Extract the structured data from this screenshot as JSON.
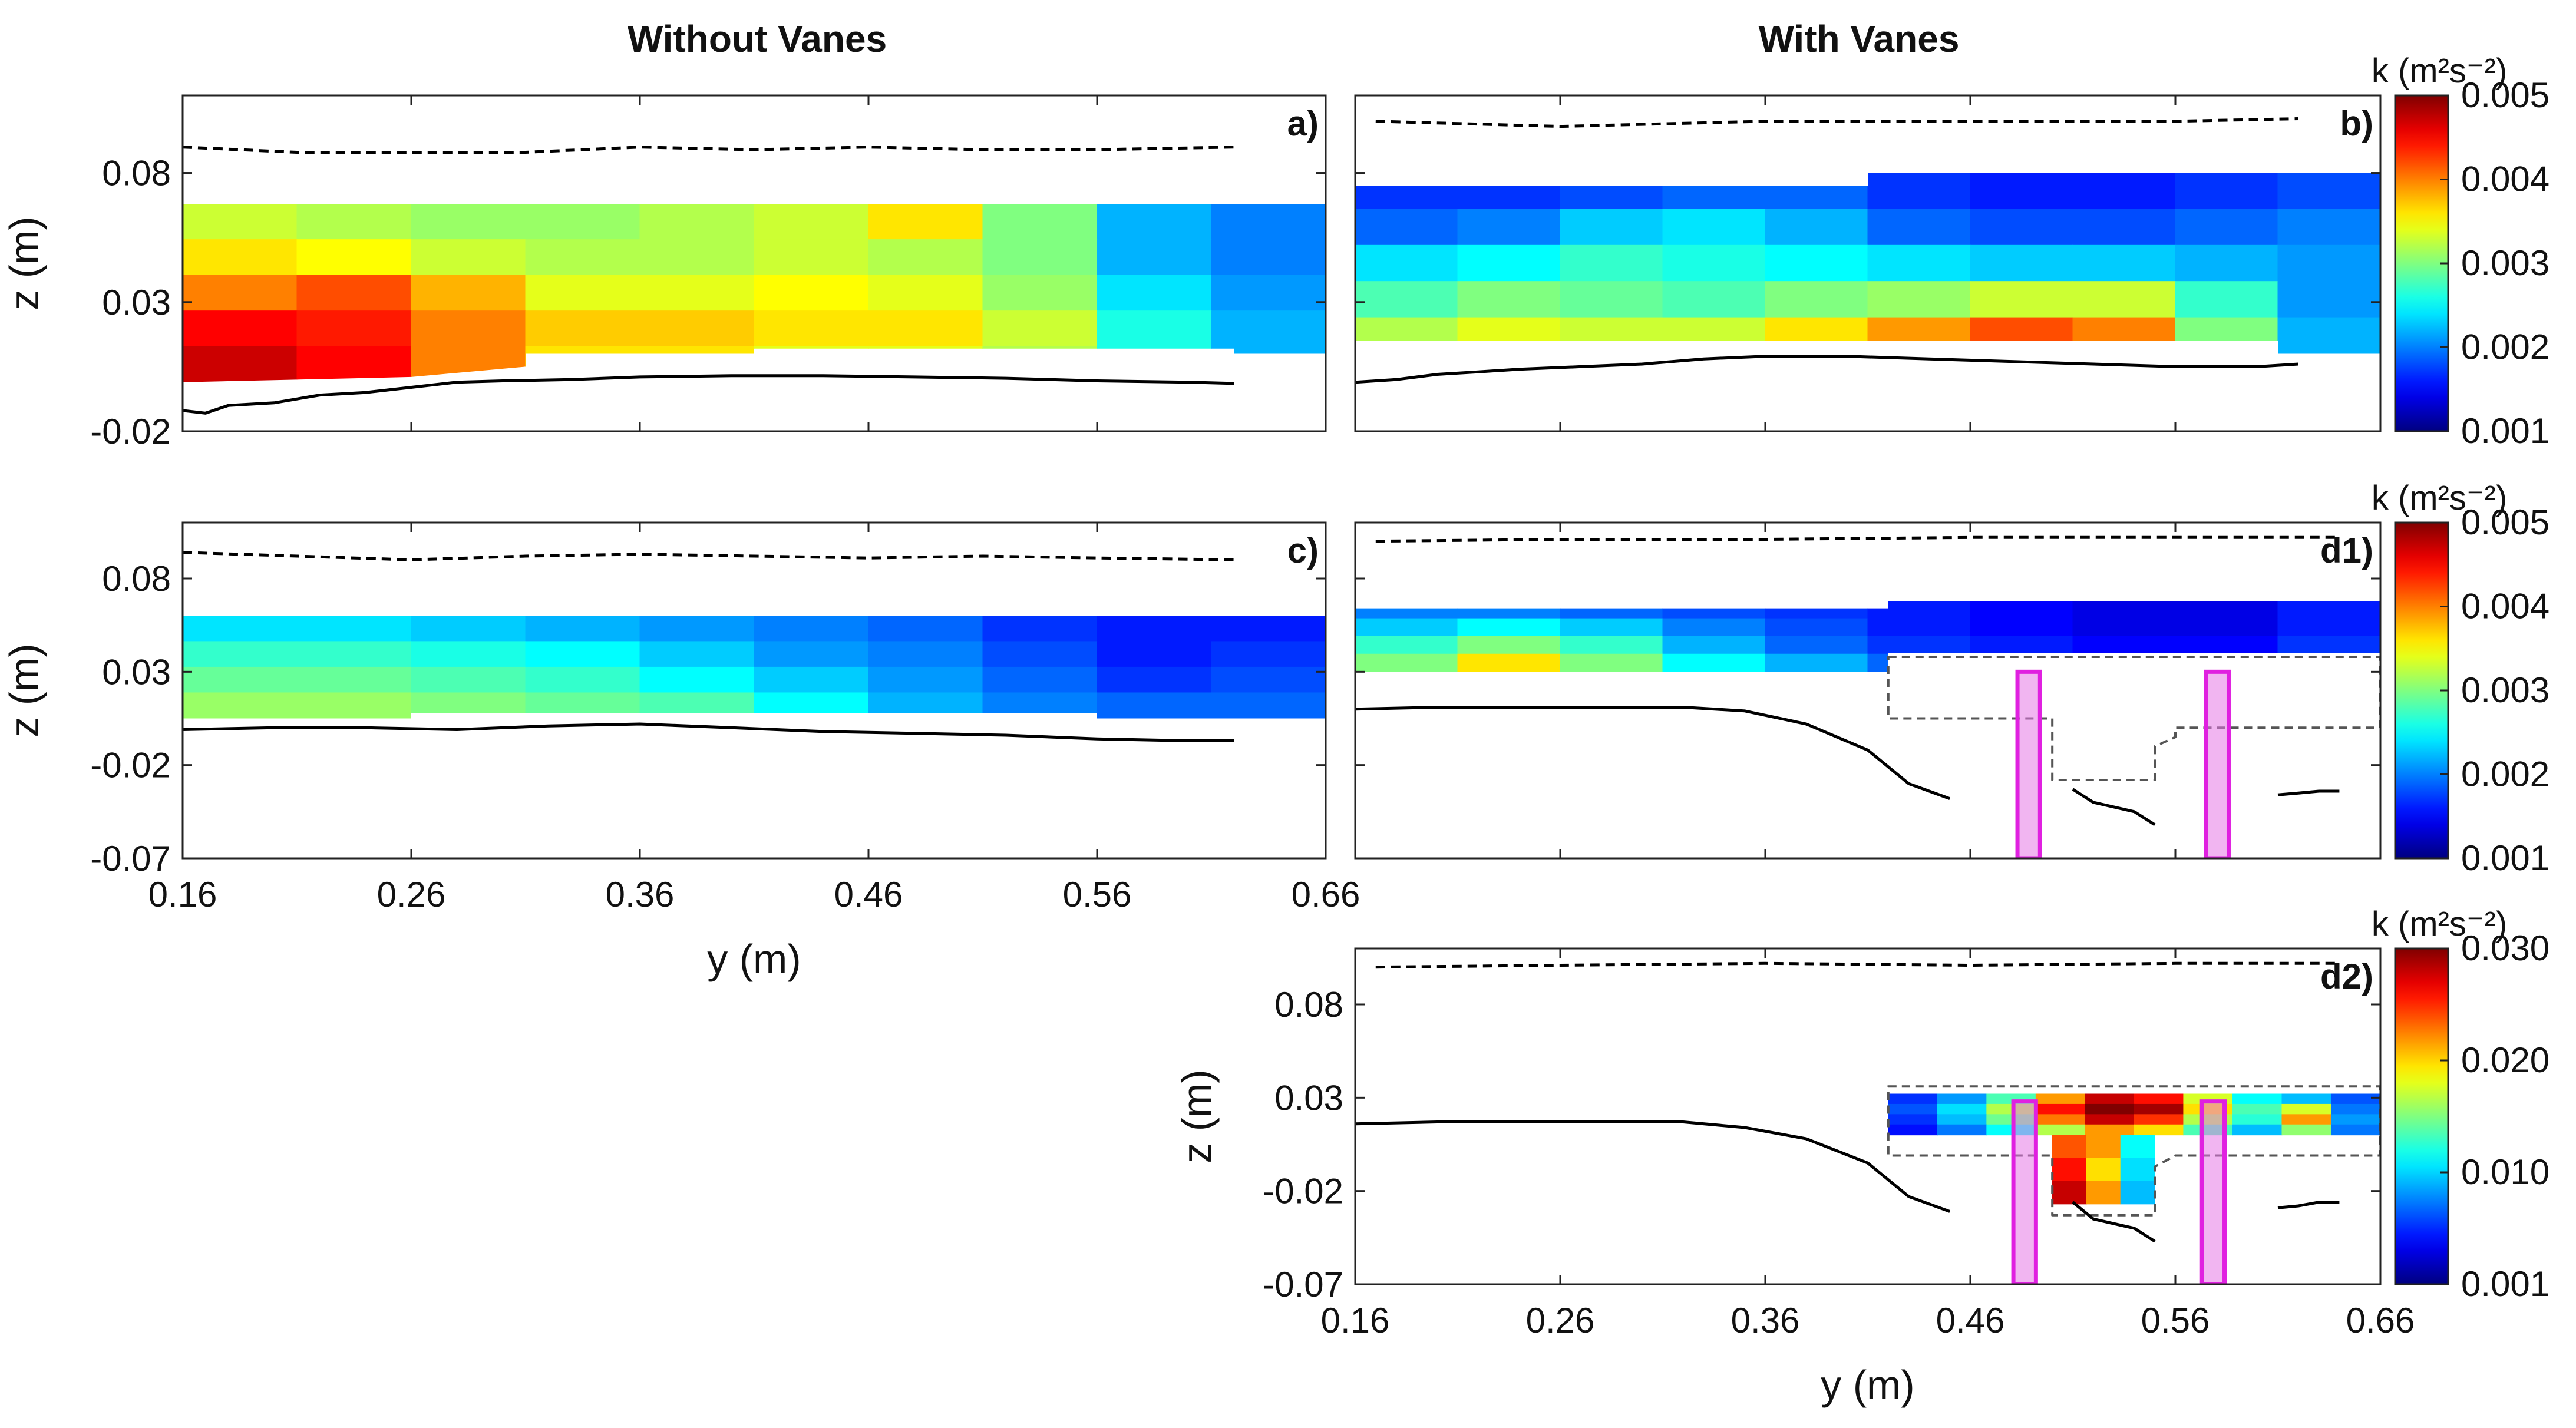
{
  "figure": {
    "col_titles": [
      "Without Vanes",
      "With Vanes"
    ]
  },
  "chart_data": [
    {
      "type": "heatmap",
      "panel": "a)",
      "xlabel": "",
      "ylabel": "z (m)",
      "xlim": [
        0.16,
        0.66
      ],
      "ylim": [
        -0.02,
        0.11
      ],
      "yticks": [
        "0.08",
        "0.03",
        "-0.02"
      ],
      "ytick_values": [
        0.08,
        0.03,
        -0.02
      ],
      "xticks": [],
      "xtick_values": [
        0.16,
        0.26,
        0.36,
        0.46,
        0.56,
        0.66
      ],
      "colorbar_label": "",
      "clim": [
        0.001,
        0.005
      ],
      "field_rows": [
        [
          0.0033,
          0.0032,
          0.0031,
          0.0031,
          0.0032,
          0.0033,
          0.0036,
          0.003,
          0.0022,
          0.002
        ],
        [
          0.0036,
          0.0035,
          0.0033,
          0.0032,
          0.0032,
          0.0033,
          0.0032,
          0.003,
          0.0022,
          0.002
        ],
        [
          0.004,
          0.0042,
          0.0038,
          0.0034,
          0.0034,
          0.0035,
          0.0034,
          0.0031,
          0.0024,
          0.0021
        ],
        [
          0.0045,
          0.0044,
          0.004,
          0.0037,
          0.0037,
          0.0036,
          0.0036,
          0.0033,
          0.0026,
          0.0022
        ],
        [
          0.0047,
          0.0045,
          0.004,
          0.0036,
          0.0036,
          0.0034,
          0.0034,
          0.0032,
          0.0026,
          0.0022
        ]
      ],
      "field_y_top": 0.068,
      "field_y_bottom": 0.0,
      "field_bottom_line": {
        "y": [
          0.16,
          0.26,
          0.31,
          0.31,
          0.41,
          0.41,
          0.62,
          0.62,
          0.66
        ],
        "z": [
          -0.001,
          0.001,
          0.005,
          0.01,
          0.01,
          0.012,
          0.012,
          0.01,
          0.01
        ]
      },
      "water_surface": {
        "y": [
          0.16,
          0.21,
          0.31,
          0.36,
          0.41,
          0.46,
          0.51,
          0.56,
          0.62
        ],
        "z": [
          0.09,
          0.088,
          0.088,
          0.09,
          0.089,
          0.09,
          0.089,
          0.089,
          0.09
        ]
      },
      "bed": {
        "y": [
          0.16,
          0.17,
          0.18,
          0.2,
          0.22,
          0.24,
          0.26,
          0.28,
          0.3,
          0.33,
          0.36,
          0.4,
          0.44,
          0.48,
          0.52,
          0.56,
          0.6,
          0.62
        ],
        "z": [
          -0.012,
          -0.013,
          -0.01,
          -0.009,
          -0.006,
          -0.005,
          -0.003,
          -0.001,
          -0.0005,
          0.0,
          0.001,
          0.0015,
          0.0015,
          0.001,
          0.0005,
          -0.0005,
          -0.001,
          -0.0015
        ]
      }
    },
    {
      "type": "heatmap",
      "panel": "b)",
      "xlabel": "",
      "ylabel": "",
      "xlim": [
        0.16,
        0.66
      ],
      "ylim": [
        -0.02,
        0.11
      ],
      "yticks": [],
      "ytick_values": [
        0.08,
        0.03,
        -0.02
      ],
      "xticks": [],
      "xtick_values": [
        0.16,
        0.26,
        0.36,
        0.46,
        0.56,
        0.66
      ],
      "colorbar_label": "k (m²s⁻²)",
      "clim": [
        0.001,
        0.005
      ],
      "cbar_ticks": [
        "0.005",
        "0.004",
        "0.003",
        "0.002",
        "0.001"
      ],
      "field_rows": [
        [
          0.0017,
          0.0017,
          0.0018,
          0.0019,
          0.0019,
          0.0017,
          0.0016,
          0.0016,
          0.0017,
          0.0018
        ],
        [
          0.0019,
          0.002,
          0.0023,
          0.0024,
          0.0022,
          0.0019,
          0.0018,
          0.0018,
          0.0019,
          0.002
        ],
        [
          0.0024,
          0.0025,
          0.0027,
          0.0026,
          0.0025,
          0.0024,
          0.0023,
          0.0023,
          0.0022,
          0.0021
        ],
        [
          0.0028,
          0.003,
          0.0029,
          0.0028,
          0.003,
          0.0031,
          0.0033,
          0.0033,
          0.0027,
          0.0021
        ],
        [
          0.0032,
          0.0034,
          0.0033,
          0.0033,
          0.0036,
          0.0039,
          0.0042,
          0.004,
          0.003,
          0.0022
        ]
      ],
      "field_y_top": 0.08,
      "field_y_bottom": 0.015,
      "field_top_line": {
        "y": [
          0.16,
          0.41,
          0.41,
          0.66
        ],
        "z": [
          0.075,
          0.075,
          0.08,
          0.08
        ]
      },
      "field_bottom_line": {
        "y": [
          0.16,
          0.61,
          0.61,
          0.66
        ],
        "z": [
          0.015,
          0.015,
          0.01,
          0.01
        ]
      },
      "water_surface": {
        "y": [
          0.17,
          0.26,
          0.36,
          0.46,
          0.56,
          0.62
        ],
        "z": [
          0.1,
          0.098,
          0.1,
          0.1,
          0.1,
          0.101
        ]
      },
      "bed": {
        "y": [
          0.16,
          0.18,
          0.2,
          0.22,
          0.24,
          0.27,
          0.3,
          0.33,
          0.36,
          0.4,
          0.44,
          0.48,
          0.52,
          0.56,
          0.6,
          0.62
        ],
        "z": [
          -0.001,
          0.0,
          0.002,
          0.003,
          0.004,
          0.005,
          0.006,
          0.008,
          0.009,
          0.009,
          0.008,
          0.007,
          0.006,
          0.005,
          0.005,
          0.006
        ]
      }
    },
    {
      "type": "heatmap",
      "panel": "c)",
      "xlabel": "y (m)",
      "ylabel": "z (m)",
      "xlim": [
        0.16,
        0.66
      ],
      "ylim": [
        -0.07,
        0.11
      ],
      "yticks": [
        "0.08",
        "0.03",
        "-0.02",
        "-0.07"
      ],
      "ytick_values": [
        0.08,
        0.03,
        -0.02,
        -0.07
      ],
      "xticks": [
        "0.16",
        "0.26",
        "0.36",
        "0.46",
        "0.56",
        "0.66"
      ],
      "xtick_values": [
        0.16,
        0.26,
        0.36,
        0.46,
        0.56,
        0.66
      ],
      "colorbar_label": "",
      "clim": [
        0.001,
        0.005
      ],
      "field_rows": [
        [
          0.0024,
          0.0024,
          0.0023,
          0.0022,
          0.0021,
          0.002,
          0.0019,
          0.0017,
          0.0016,
          0.0016
        ],
        [
          0.0027,
          0.0027,
          0.0026,
          0.0025,
          0.0023,
          0.0021,
          0.002,
          0.0018,
          0.0016,
          0.0017
        ],
        [
          0.0029,
          0.0029,
          0.0028,
          0.0027,
          0.0025,
          0.0023,
          0.0021,
          0.0019,
          0.0017,
          0.0018
        ],
        [
          0.0031,
          0.0031,
          0.003,
          0.0029,
          0.0028,
          0.0025,
          0.0022,
          0.002,
          0.0019,
          0.0019
        ]
      ],
      "field_y_top": 0.06,
      "field_y_bottom": 0.008,
      "field_bottom_line": {
        "y": [
          0.16,
          0.26,
          0.26,
          0.56,
          0.56,
          0.66
        ],
        "z": [
          0.005,
          0.005,
          0.008,
          0.008,
          0.005,
          0.005
        ]
      },
      "water_surface": {
        "y": [
          0.16,
          0.21,
          0.26,
          0.31,
          0.36,
          0.41,
          0.46,
          0.51,
          0.56,
          0.62
        ],
        "z": [
          0.094,
          0.092,
          0.09,
          0.092,
          0.093,
          0.092,
          0.091,
          0.092,
          0.091,
          0.09
        ]
      },
      "bed": {
        "y": [
          0.16,
          0.2,
          0.24,
          0.28,
          0.32,
          0.36,
          0.4,
          0.44,
          0.48,
          0.52,
          0.56,
          0.6,
          0.62
        ],
        "z": [
          -0.001,
          0.0,
          0.0,
          -0.001,
          0.001,
          0.002,
          0.0,
          -0.002,
          -0.003,
          -0.004,
          -0.006,
          -0.007,
          -0.007
        ]
      }
    },
    {
      "type": "heatmap",
      "panel": "d1)",
      "xlabel": "",
      "ylabel": "",
      "xlim": [
        0.16,
        0.66
      ],
      "ylim": [
        -0.07,
        0.11
      ],
      "yticks": [],
      "ytick_values": [
        0.08,
        0.03,
        -0.02,
        -0.07
      ],
      "xticks": [],
      "xtick_values": [
        0.16,
        0.26,
        0.36,
        0.46,
        0.56,
        0.66
      ],
      "colorbar_label": "k (m²s⁻²)",
      "clim": [
        0.001,
        0.005
      ],
      "cbar_ticks": [
        "0.005",
        "0.004",
        "0.003",
        "0.002",
        "0.001"
      ],
      "field_rows": [
        [
          0.002,
          0.002,
          0.0019,
          0.0018,
          0.0017,
          0.0016,
          0.0015,
          0.0014,
          0.0014,
          0.0016
        ],
        [
          0.0023,
          0.0025,
          0.0023,
          0.002,
          0.0018,
          0.0016,
          0.0015,
          0.0014,
          0.0014,
          0.0016
        ],
        [
          0.0027,
          0.003,
          0.0027,
          0.0022,
          0.0019,
          0.0017,
          0.0016,
          0.0015,
          0.0015,
          0.0017
        ],
        [
          0.003,
          0.0036,
          0.003,
          0.0025,
          0.0022,
          0.0019,
          0.0017,
          0.0016,
          0.0016,
          0.0018
        ]
      ],
      "field_y_top": 0.068,
      "field_y_bottom": 0.03,
      "field_top_line": {
        "y": [
          0.16,
          0.42,
          0.42,
          0.66
        ],
        "z": [
          0.064,
          0.064,
          0.068,
          0.068
        ]
      },
      "field_bottom_line": {
        "y": [
          0.16,
          0.42,
          0.42,
          0.66
        ],
        "z": [
          0.03,
          0.03,
          0.04,
          0.04
        ]
      },
      "water_surface": {
        "y": [
          0.17,
          0.26,
          0.36,
          0.46,
          0.56,
          0.64
        ],
        "z": [
          0.1,
          0.101,
          0.101,
          0.102,
          0.102,
          0.102
        ]
      },
      "bed": {
        "y": [
          0.16,
          0.2,
          0.24,
          0.28,
          0.32,
          0.35,
          0.38,
          0.41,
          0.43,
          0.45
        ],
        "z": [
          0.01,
          0.011,
          0.011,
          0.011,
          0.011,
          0.009,
          0.002,
          -0.012,
          -0.03,
          -0.038
        ]
      },
      "bed_segments": [
        {
          "y": [
            0.51,
            0.52,
            0.54,
            0.55
          ],
          "z": [
            -0.033,
            -0.04,
            -0.045,
            -0.052
          ]
        },
        {
          "y": [
            0.61,
            0.62,
            0.63,
            0.64
          ],
          "z": [
            -0.036,
            -0.035,
            -0.034,
            -0.034
          ]
        }
      ],
      "vanes": [
        {
          "y0": 0.483,
          "y1": 0.494
        },
        {
          "y0": 0.575,
          "y1": 0.586
        }
      ],
      "vane_top_z": 0.03,
      "dashed_region": {
        "y": [
          0.42,
          0.66,
          0.66,
          0.58,
          0.56,
          0.56,
          0.55,
          0.55,
          0.5,
          0.5,
          0.42,
          0.42
        ],
        "z": [
          0.038,
          0.038,
          0.0,
          0.0,
          0.0,
          -0.005,
          -0.01,
          -0.028,
          -0.028,
          0.005,
          0.005,
          0.038
        ]
      }
    },
    {
      "type": "heatmap",
      "panel": "d2)",
      "xlabel": "y (m)",
      "ylabel": "z (m)",
      "xlim": [
        0.16,
        0.66
      ],
      "ylim": [
        -0.07,
        0.11
      ],
      "yticks": [
        "0.08",
        "0.03",
        "-0.02",
        "-0.07"
      ],
      "ytick_values": [
        0.08,
        0.03,
        -0.02,
        -0.07
      ],
      "xticks": [
        "0.16",
        "0.26",
        "0.36",
        "0.46",
        "0.56",
        "0.66"
      ],
      "xtick_values": [
        0.16,
        0.26,
        0.36,
        0.46,
        0.56,
        0.66
      ],
      "colorbar_label": "k (m²s⁻²)",
      "clim": [
        0.001,
        0.03
      ],
      "cbar_ticks": [
        "0.030",
        "0.020",
        "0.010",
        "0.001"
      ],
      "t_rows": [
        [
          0.006,
          0.009,
          0.014,
          0.022,
          0.028,
          0.026,
          0.018,
          0.012,
          0.01,
          0.007
        ],
        [
          0.007,
          0.011,
          0.017,
          0.026,
          0.03,
          0.029,
          0.02,
          0.014,
          0.018,
          0.008
        ],
        [
          0.006,
          0.01,
          0.015,
          0.023,
          0.028,
          0.025,
          0.017,
          0.013,
          0.022,
          0.009
        ],
        [
          0.005,
          0.008,
          0.012,
          0.017,
          0.022,
          0.02,
          0.014,
          0.01,
          0.016,
          0.008
        ]
      ],
      "stem_rows": [
        [
          0.024,
          0.022,
          0.012
        ],
        [
          0.026,
          0.02,
          0.011
        ],
        [
          0.028,
          0.022,
          0.01
        ]
      ],
      "field_top_z": 0.032,
      "field_mid_z": 0.01,
      "field_stem_bottom_z": -0.027,
      "field_y": [
        0.42,
        0.66
      ],
      "stem_y": [
        0.5,
        0.55
      ],
      "water_surface": {
        "y": [
          0.17,
          0.26,
          0.36,
          0.46,
          0.56,
          0.64
        ],
        "z": [
          0.1,
          0.101,
          0.102,
          0.101,
          0.102,
          0.102
        ]
      },
      "bed": {
        "y": [
          0.16,
          0.2,
          0.24,
          0.28,
          0.32,
          0.35,
          0.38,
          0.41,
          0.43,
          0.45
        ],
        "z": [
          0.016,
          0.017,
          0.017,
          0.017,
          0.017,
          0.014,
          0.008,
          -0.005,
          -0.023,
          -0.031
        ]
      },
      "bed_segments": [
        {
          "y": [
            0.51,
            0.52,
            0.54,
            0.55
          ],
          "z": [
            -0.026,
            -0.035,
            -0.04,
            -0.047
          ]
        },
        {
          "y": [
            0.61,
            0.62,
            0.63,
            0.64
          ],
          "z": [
            -0.029,
            -0.028,
            -0.026,
            -0.026
          ]
        }
      ],
      "vanes": [
        {
          "y0": 0.481,
          "y1": 0.492
        },
        {
          "y0": 0.573,
          "y1": 0.584
        }
      ],
      "vane_top_z": 0.028,
      "dashed_region": {
        "y": [
          0.42,
          0.66,
          0.66,
          0.56,
          0.55,
          0.55,
          0.5,
          0.5,
          0.42,
          0.42
        ],
        "z": [
          0.036,
          0.036,
          -0.001,
          -0.001,
          -0.007,
          -0.033,
          -0.033,
          -0.001,
          -0.001,
          0.036
        ]
      }
    }
  ]
}
